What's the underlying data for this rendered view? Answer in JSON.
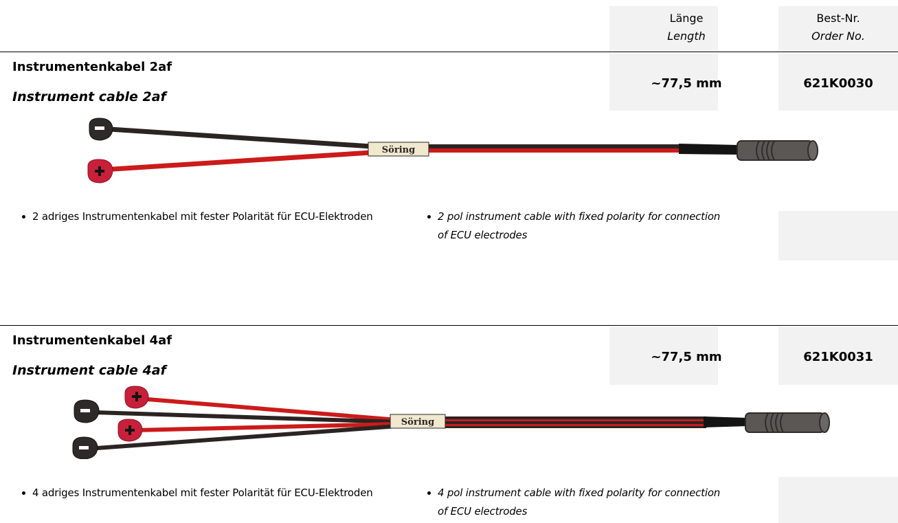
{
  "header": {
    "length_de": "Länge",
    "length_en": "Length",
    "order_de": "Best-Nr.",
    "order_en": "Order No."
  },
  "products": [
    {
      "title_de": "Instrumentenkabel 2af",
      "title_en": "Instrument cable 2af",
      "length": "~77,5 mm",
      "order_no": "621K0030",
      "brand": "Söring",
      "desc_de": "2 adriges Instrumentenkabel mit fester Polarität für ECU-Elektroden",
      "desc_en": "2 pol instrument cable with fixed polarity for connection of ECU electrodes",
      "plugs": [
        "-",
        "+"
      ]
    },
    {
      "title_de": "Instrumentenkabel 4af",
      "title_en": "Instrument cable 4af",
      "length": "~77,5 mm",
      "order_no": "621K0031",
      "brand": "Söring",
      "desc_de": "4 adriges Instrumentenkabel mit fester Polarität für ECU-Elektroden",
      "desc_en": "4 pol instrument cable with fixed polarity for connection of ECU electrodes",
      "plugs": [
        "+",
        "-",
        "+",
        "-"
      ]
    }
  ],
  "colors": {
    "cable_black": "#2b2422",
    "cable_red": "#cc1b1b",
    "plug_red": "#c8203a",
    "plug_black": "#2d2a28",
    "label_bg": "#f0e8cf",
    "connector": "#5a5754",
    "panel_gray": "#f2f2f2"
  }
}
